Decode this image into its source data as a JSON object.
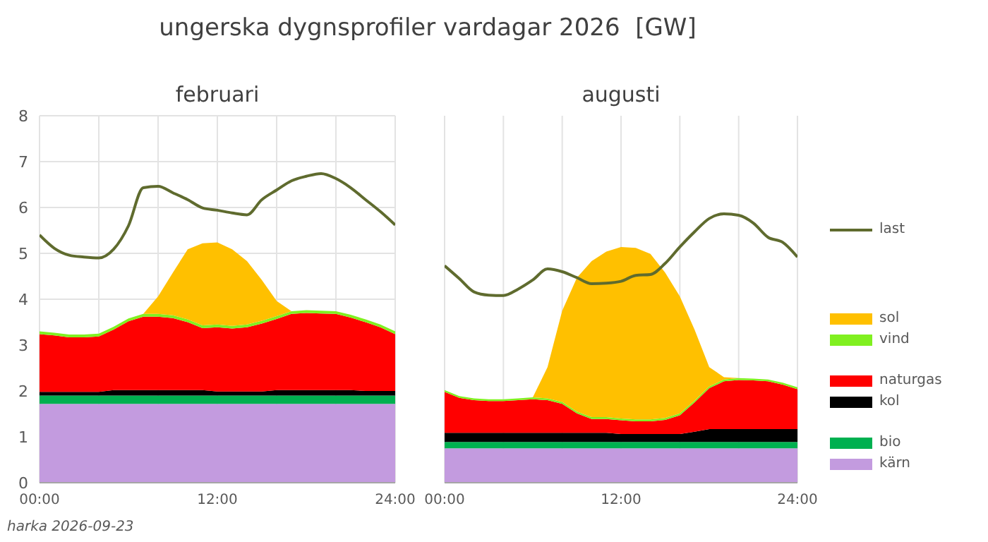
{
  "chart_data": [
    {
      "type": "area",
      "title": "ungerska dygnsprofiler vardagar 2026  [GW]",
      "subtitle": "februari",
      "annotations": [
        "harka 2026-09-23"
      ],
      "x": [
        0,
        1,
        2,
        3,
        4,
        5,
        6,
        7,
        8,
        9,
        10,
        11,
        12,
        13,
        14,
        15,
        16,
        17,
        18,
        19,
        20,
        21,
        22,
        23,
        24
      ],
      "xlim": [
        0,
        24
      ],
      "xticks": [
        {
          "value": 0,
          "label": "00:00"
        },
        {
          "value": 4,
          "label": null
        },
        {
          "value": 8,
          "label": null
        },
        {
          "value": 12,
          "label": "12:00"
        },
        {
          "value": 16,
          "label": null
        },
        {
          "value": 20,
          "label": null
        },
        {
          "value": 24,
          "label": "24:00"
        }
      ],
      "ylim": [
        0,
        8
      ],
      "yticks": [
        0,
        1,
        2,
        3,
        4,
        5,
        6,
        7,
        8
      ],
      "grid": true,
      "stacked": true,
      "legend": false,
      "series": [
        {
          "color": "#c39bdf",
          "values": [
            1.72,
            1.72,
            1.72,
            1.72,
            1.72,
            1.72,
            1.72,
            1.72,
            1.72,
            1.72,
            1.72,
            1.72,
            1.72,
            1.72,
            1.72,
            1.72,
            1.72,
            1.72,
            1.72,
            1.72,
            1.72,
            1.72,
            1.72,
            1.72,
            1.72
          ]
        },
        {
          "color": "#00b050",
          "values": [
            0.18,
            0.18,
            0.18,
            0.18,
            0.18,
            0.18,
            0.18,
            0.18,
            0.18,
            0.18,
            0.18,
            0.18,
            0.18,
            0.18,
            0.18,
            0.18,
            0.18,
            0.18,
            0.18,
            0.18,
            0.18,
            0.18,
            0.18,
            0.18,
            0.18
          ]
        },
        {
          "color": "#000000",
          "values": [
            0.08,
            0.08,
            0.08,
            0.08,
            0.08,
            0.12,
            0.12,
            0.12,
            0.12,
            0.12,
            0.12,
            0.12,
            0.09,
            0.09,
            0.09,
            0.09,
            0.12,
            0.12,
            0.12,
            0.12,
            0.12,
            0.12,
            0.1,
            0.1,
            0.1
          ]
        },
        {
          "color": "#ff0000",
          "values": [
            1.26,
            1.23,
            1.19,
            1.19,
            1.21,
            1.32,
            1.5,
            1.6,
            1.6,
            1.57,
            1.48,
            1.35,
            1.4,
            1.37,
            1.4,
            1.48,
            1.55,
            1.66,
            1.68,
            1.67,
            1.66,
            1.58,
            1.5,
            1.39,
            1.24
          ]
        },
        {
          "color": "#80f020",
          "values": [
            0.06,
            0.06,
            0.06,
            0.06,
            0.06,
            0.06,
            0.06,
            0.06,
            0.06,
            0.06,
            0.06,
            0.06,
            0.06,
            0.06,
            0.06,
            0.06,
            0.06,
            0.06,
            0.06,
            0.06,
            0.06,
            0.06,
            0.06,
            0.06,
            0.06
          ]
        },
        {
          "color": "#ffc000",
          "values": [
            0,
            0,
            0,
            0,
            0,
            0,
            0,
            0,
            0.38,
            0.93,
            1.53,
            1.79,
            1.79,
            1.67,
            1.38,
            0.89,
            0.33,
            0,
            0,
            0,
            0,
            0,
            0,
            0,
            0
          ]
        },
        {
          "type": "line",
          "color": "#5f6b2e",
          "values": [
            5.4,
            5.11,
            4.96,
            4.92,
            4.9,
            5.09,
            5.6,
            6.43,
            6.46,
            6.32,
            6.17,
            5.99,
            5.94,
            5.88,
            5.84,
            6.17,
            6.38,
            6.58,
            6.68,
            6.74,
            6.63,
            6.43,
            6.17,
            5.91,
            5.62
          ]
        }
      ]
    },
    {
      "type": "area",
      "subtitle": "augusti",
      "x": [
        0,
        1,
        2,
        3,
        4,
        5,
        6,
        7,
        8,
        9,
        10,
        11,
        12,
        13,
        14,
        15,
        16,
        17,
        18,
        19,
        20,
        21,
        22,
        23,
        24
      ],
      "xlim": [
        0,
        24
      ],
      "xticks": [
        {
          "value": 0,
          "label": "00:00"
        },
        {
          "value": 4,
          "label": null
        },
        {
          "value": 8,
          "label": null
        },
        {
          "value": 12,
          "label": "12:00"
        },
        {
          "value": 16,
          "label": null
        },
        {
          "value": 20,
          "label": null
        },
        {
          "value": 24,
          "label": "24:00"
        }
      ],
      "ylim": [
        0,
        8
      ],
      "yticks": [
        0,
        1,
        2,
        3,
        4,
        5,
        6,
        7,
        8
      ],
      "grid": true,
      "stacked": true,
      "legend": "right",
      "tick_labels": "x",
      "series": [
        {
          "name": "kärn",
          "color": "#c39bdf",
          "values": [
            0.75,
            0.75,
            0.75,
            0.75,
            0.75,
            0.75,
            0.75,
            0.75,
            0.75,
            0.75,
            0.75,
            0.75,
            0.75,
            0.75,
            0.75,
            0.75,
            0.75,
            0.75,
            0.75,
            0.75,
            0.75,
            0.75,
            0.75,
            0.75,
            0.75
          ]
        },
        {
          "name": "bio",
          "color": "#00b050",
          "values": [
            0.14,
            0.14,
            0.14,
            0.14,
            0.14,
            0.14,
            0.14,
            0.14,
            0.14,
            0.14,
            0.14,
            0.14,
            0.14,
            0.14,
            0.14,
            0.14,
            0.14,
            0.14,
            0.14,
            0.14,
            0.14,
            0.14,
            0.14,
            0.14,
            0.14
          ]
        },
        {
          "name": "kol",
          "color": "#000000",
          "values": [
            0.2,
            0.2,
            0.2,
            0.2,
            0.2,
            0.2,
            0.2,
            0.2,
            0.2,
            0.2,
            0.2,
            0.2,
            0.17,
            0.17,
            0.17,
            0.17,
            0.17,
            0.22,
            0.28,
            0.28,
            0.28,
            0.28,
            0.28,
            0.28,
            0.28
          ]
        },
        {
          "name": "naturgas",
          "color": "#ff0000",
          "values": [
            0.89,
            0.76,
            0.71,
            0.69,
            0.69,
            0.71,
            0.73,
            0.71,
            0.63,
            0.42,
            0.3,
            0.3,
            0.3,
            0.28,
            0.28,
            0.31,
            0.41,
            0.64,
            0.89,
            1.04,
            1.07,
            1.06,
            1.04,
            0.97,
            0.87
          ]
        },
        {
          "name": "vind",
          "color": "#80f020",
          "values": [
            0.04,
            0.04,
            0.04,
            0.04,
            0.04,
            0.04,
            0.04,
            0.04,
            0.04,
            0.04,
            0.04,
            0.04,
            0.04,
            0.04,
            0.04,
            0.04,
            0.04,
            0.04,
            0.04,
            0.04,
            0.04,
            0.04,
            0.04,
            0.04,
            0.04
          ]
        },
        {
          "name": "sol",
          "color": "#ffc000",
          "values": [
            0,
            0,
            0,
            0,
            0,
            0,
            0,
            0.68,
            1.99,
            2.92,
            3.4,
            3.61,
            3.74,
            3.74,
            3.61,
            3.17,
            2.55,
            1.55,
            0.42,
            0.05,
            0,
            0,
            0,
            0,
            0
          ]
        },
        {
          "name": "last",
          "type": "line",
          "color": "#5f6b2e",
          "values": [
            4.73,
            4.45,
            4.16,
            4.09,
            4.08,
            4.22,
            4.42,
            4.66,
            4.6,
            4.47,
            4.34,
            4.35,
            4.39,
            4.52,
            4.54,
            4.78,
            5.14,
            5.47,
            5.76,
            5.86,
            5.83,
            5.66,
            5.35,
            5.24,
            4.92
          ]
        }
      ]
    }
  ]
}
